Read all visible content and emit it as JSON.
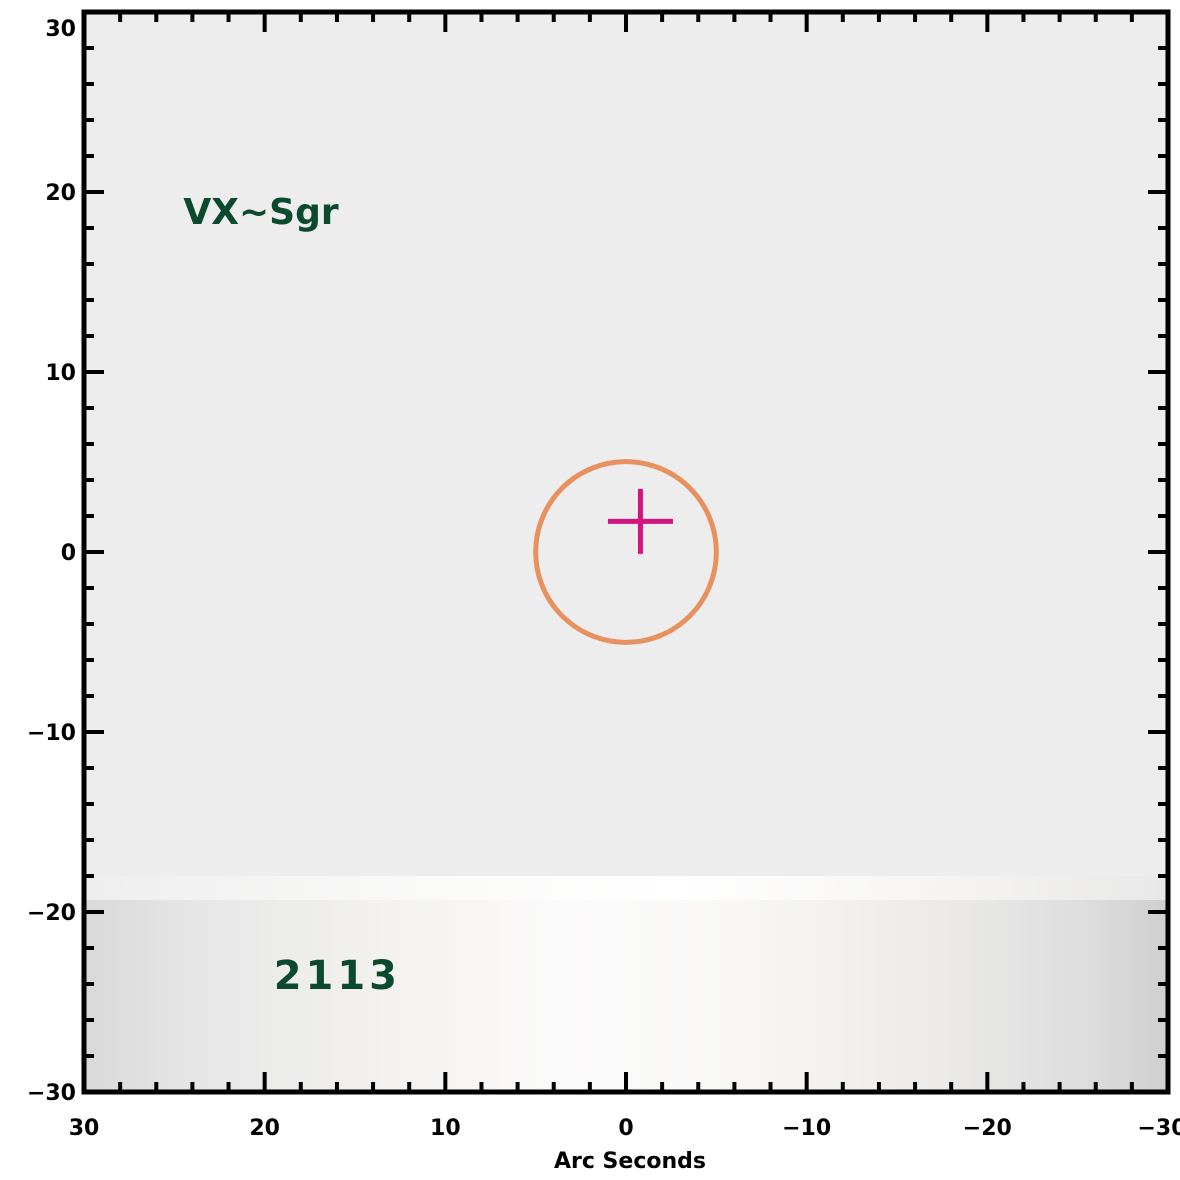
{
  "chart_data": {
    "type": "heatmap",
    "title": "",
    "xlabel": "Arc Seconds",
    "ylabel": "",
    "xlim": [
      30,
      -30
    ],
    "ylim": [
      -30,
      30
    ],
    "x_ticks": [
      30,
      20,
      10,
      0,
      -10,
      -20,
      -30
    ],
    "y_ticks": [
      30,
      20,
      10,
      0,
      -10,
      -20,
      -30
    ],
    "x_tick_labels": [
      "30",
      "20",
      "10",
      "0",
      "−10",
      "−20",
      "−30"
    ],
    "y_tick_labels": [
      "30",
      "20",
      "10",
      "0",
      "−10",
      "−20",
      "−30"
    ],
    "grid": false,
    "colors": {
      "background": "#ededed",
      "circle": "#e8915f",
      "cross": "#d4147f",
      "annotation": "#0b4a2c",
      "frame": "#000000"
    },
    "circle": {
      "x": 0,
      "y": 0,
      "radius": 5
    },
    "cross": {
      "x": -0.8,
      "y": 1.7,
      "arm": 1.8
    },
    "strip": {
      "y_top": -18,
      "y_bottom": -30
    },
    "annotations": [
      {
        "text": "VX~Sgr",
        "x": 24.5,
        "y": 19
      },
      {
        "text": "2113",
        "x": 19.5,
        "y": -23.5
      }
    ]
  }
}
